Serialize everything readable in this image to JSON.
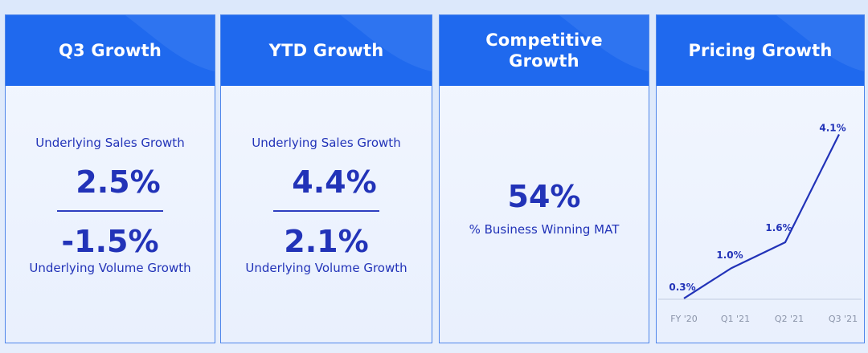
{
  "cards": [
    {
      "title": "Q3 Growth",
      "label_top": "Underlying Sales Growth",
      "value_top": "2.5%",
      "value_bottom": "-1.5%",
      "label_bottom": "Underlying Volume Growth"
    },
    {
      "title": "YTD Growth",
      "label_top": "Underlying Sales Growth",
      "value_top": "4.4%",
      "value_bottom": "2.1%",
      "label_bottom": "Underlying Volume Growth"
    },
    {
      "title": "Competitive\nGrowth",
      "value": "54%",
      "label": "% Business Winning MAT"
    },
    {
      "title": "Pricing Growth"
    }
  ],
  "colors": {
    "header": "#1f69ee",
    "text": "#2233b8",
    "card_border": "#4f86ea",
    "line": "#2233b8"
  },
  "chart_data": {
    "type": "line",
    "title": "Pricing Growth",
    "categories": [
      "FY '20",
      "Q1 '21",
      "Q2 '21",
      "Q3 '21"
    ],
    "values": [
      0.3,
      1.0,
      1.6,
      4.1
    ],
    "data_labels": [
      "0.3%",
      "1.0%",
      "1.6%",
      "4.1%"
    ],
    "ylim": [
      0,
      4.5
    ],
    "grid": false,
    "legend": "none"
  }
}
